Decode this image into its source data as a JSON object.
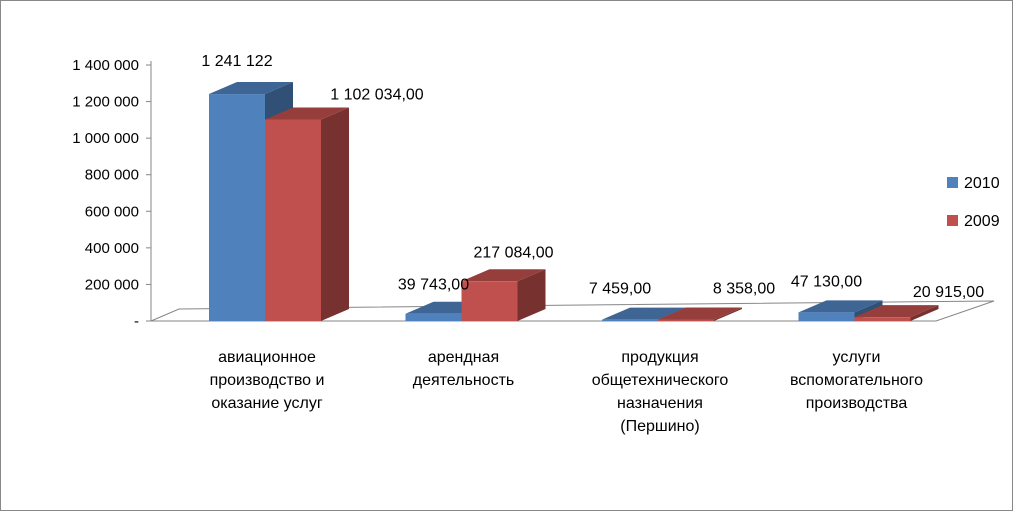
{
  "chart_data": {
    "type": "bar",
    "style": "3d-clustered-column",
    "categories": [
      [
        "авиационное",
        "производство и",
        "оказание услуг"
      ],
      [
        "арендная",
        "деятельность"
      ],
      [
        "продукция",
        "общетехнического",
        "назначения",
        "(Першино)"
      ],
      [
        "услуги",
        "вспомогательного",
        "производства"
      ]
    ],
    "series": [
      {
        "name": "2010",
        "color": "#4F81BD",
        "values": [
          1241122,
          39743,
          7459,
          47130
        ],
        "labels": [
          "1 241 122",
          "39 743,00",
          "7 459,00",
          "47 130,00"
        ]
      },
      {
        "name": "2009",
        "color": "#C0504D",
        "values": [
          1102034,
          217084,
          8358,
          20915
        ],
        "labels": [
          "1 102 034,00",
          "217 084,00",
          "8 358,00",
          "20 915,00"
        ]
      }
    ],
    "ylim": [
      0,
      1400000
    ],
    "yticks": [
      0,
      200000,
      400000,
      600000,
      800000,
      1000000,
      1200000,
      1400000
    ],
    "ytick_labels": [
      "-",
      "200 000",
      "400 000",
      "600 000",
      "800 000",
      "1 000 000",
      "1 200 000",
      "1 400 000"
    ],
    "legend_position": "right",
    "grid": false
  }
}
